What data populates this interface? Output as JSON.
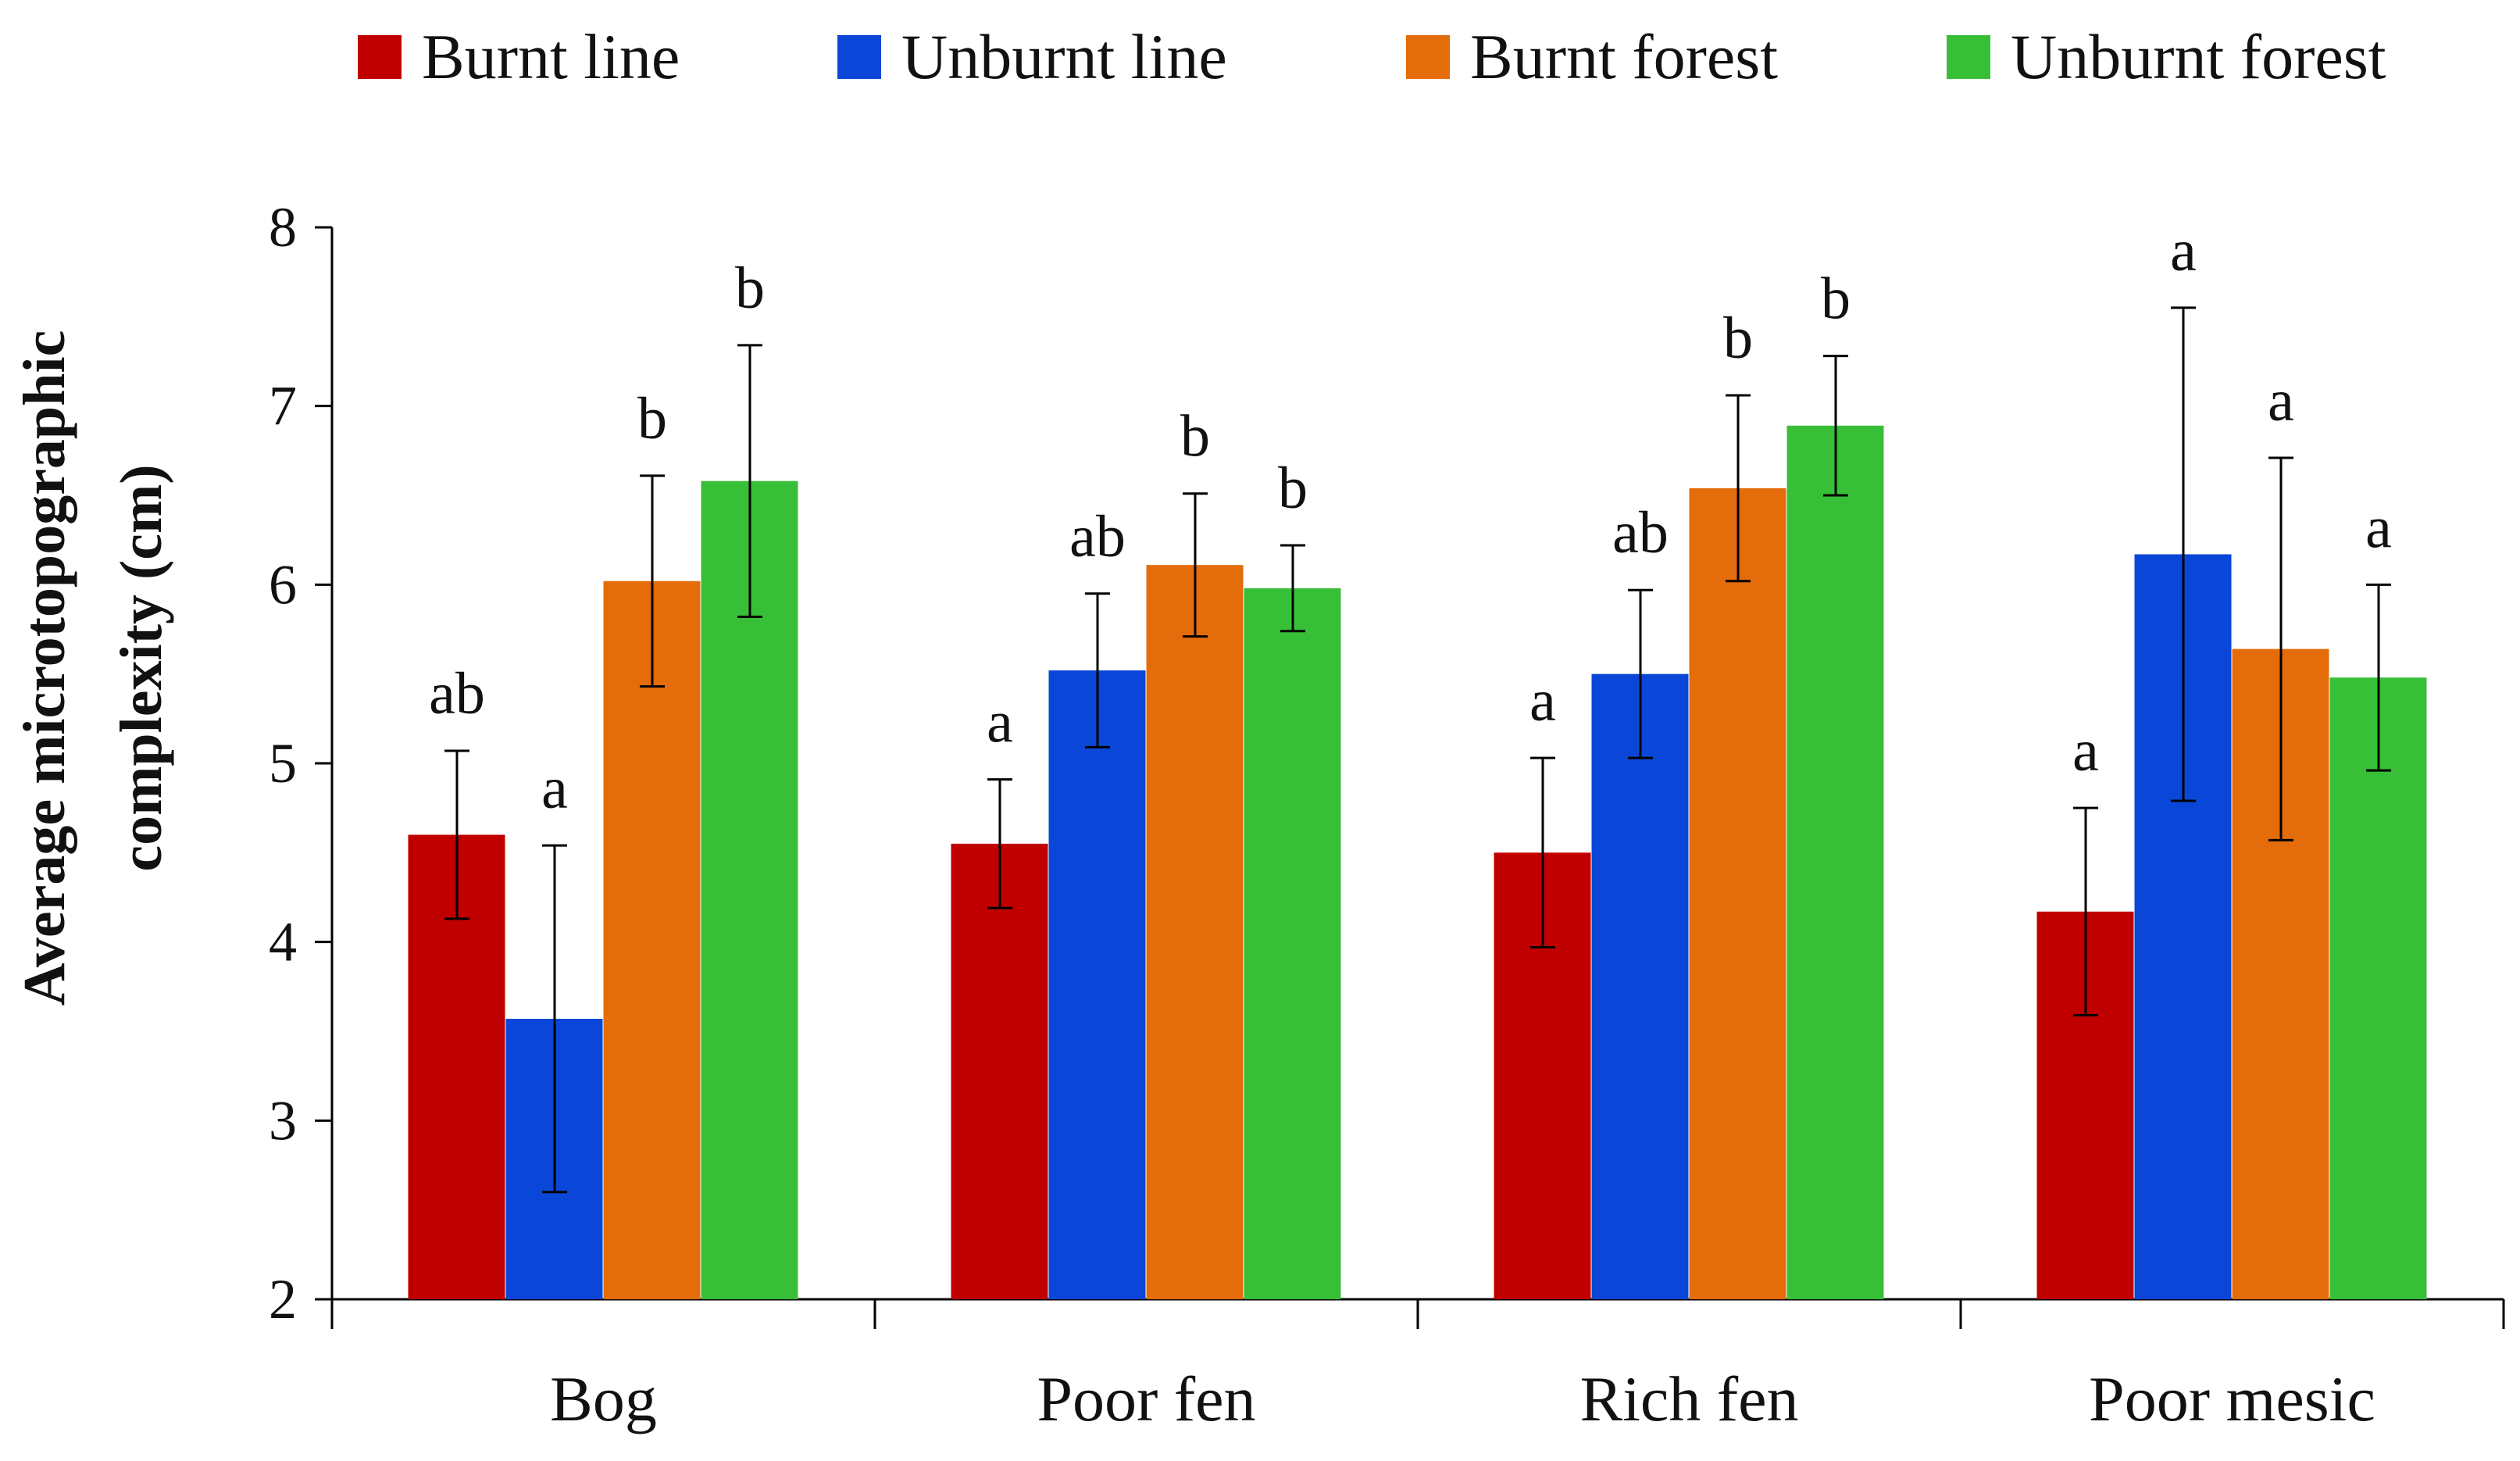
{
  "colors": {
    "burnt_line": "#c00000",
    "unburnt_line": "#0a47d8",
    "burnt_forest": "#e46c0a",
    "unburnt_forest": "#38bf38",
    "axis": "#000000"
  },
  "chart_data": {
    "type": "bar",
    "title": "",
    "xlabel": "",
    "ylabel_lines": [
      "Average microtopographic",
      "complexity (cm)"
    ],
    "ylim": [
      2,
      8
    ],
    "yticks": [
      2,
      3,
      4,
      5,
      6,
      7,
      8
    ],
    "legend_position": "top",
    "categories": [
      "Bog",
      "Poor fen",
      "Rich fen",
      "Poor mesic"
    ],
    "series": [
      {
        "name": "Burnt line",
        "color_key": "burnt_line",
        "values": [
          4.6,
          4.55,
          4.5,
          4.17
        ],
        "error": [
          0.47,
          0.36,
          0.53,
          0.58
        ],
        "letters": [
          "ab",
          "a",
          "a",
          "a"
        ]
      },
      {
        "name": "Unburnt line",
        "color_key": "unburnt_line",
        "values": [
          3.57,
          5.52,
          5.5,
          6.17
        ],
        "error": [
          0.97,
          0.43,
          0.47,
          1.38
        ],
        "letters": [
          "a",
          "ab",
          "ab",
          "a"
        ]
      },
      {
        "name": "Burnt forest",
        "color_key": "burnt_forest",
        "values": [
          6.02,
          6.11,
          6.54,
          5.64
        ],
        "error": [
          0.59,
          0.4,
          0.52,
          1.07
        ],
        "letters": [
          "b",
          "b",
          "b",
          "a"
        ]
      },
      {
        "name": "Unburnt forest",
        "color_key": "unburnt_forest",
        "values": [
          6.58,
          5.98,
          6.89,
          5.48
        ],
        "error": [
          0.76,
          0.24,
          0.39,
          0.52
        ],
        "letters": [
          "b",
          "b",
          "b",
          "a"
        ]
      }
    ]
  }
}
